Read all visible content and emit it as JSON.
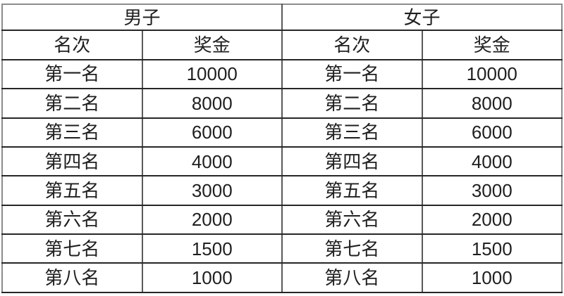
{
  "table": {
    "group_headers": [
      {
        "label": "男子"
      },
      {
        "label": "女子"
      }
    ],
    "column_headers": [
      "名次",
      "奖金",
      "名次",
      "奖金"
    ],
    "rows": [
      [
        "第一名",
        "10000",
        "第一名",
        "10000"
      ],
      [
        "第二名",
        "8000",
        "第二名",
        "8000"
      ],
      [
        "第三名",
        "6000",
        "第三名",
        "6000"
      ],
      [
        "第四名",
        "4000",
        "第四名",
        "4000"
      ],
      [
        "第五名",
        "3000",
        "第五名",
        "3000"
      ],
      [
        "第六名",
        "2000",
        "第六名",
        "2000"
      ],
      [
        "第七名",
        "1500",
        "第七名",
        "1500"
      ],
      [
        "第八名",
        "1000",
        "第八名",
        "1000"
      ]
    ],
    "colors": {
      "background": "#ffffff",
      "text": "#1f1f1f",
      "border_horizontal": "#262626",
      "border_vertical": "#595959",
      "border_outer": "#8c8c8c"
    }
  }
}
